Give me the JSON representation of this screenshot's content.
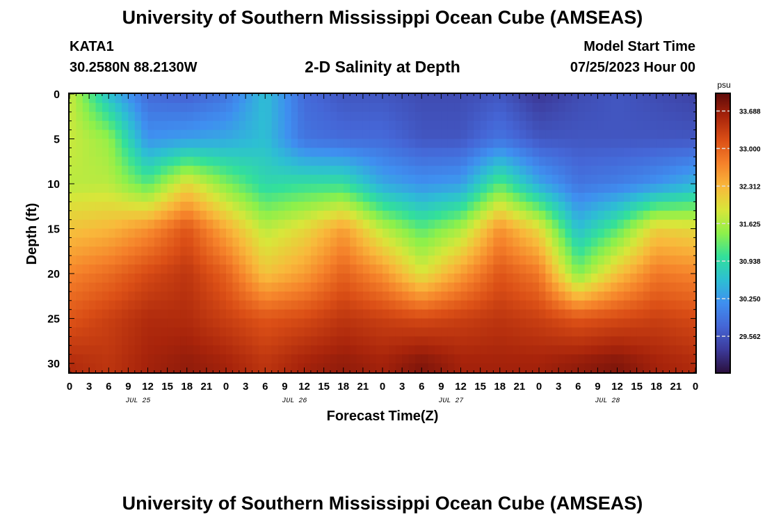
{
  "header": {
    "title": "University of Southern Mississippi Ocean Cube (AMSEAS)",
    "station_name": "KATA1",
    "station_coords": "30.2580N  88.2130W",
    "subtitle": "2-D Salinity at Depth",
    "model_start_label": "Model Start Time",
    "model_start_value": "07/25/2023 Hour 00"
  },
  "footer": {
    "title": "University of Southern Mississippi Ocean Cube (AMSEAS)"
  },
  "colors": {
    "background": "#ffffff",
    "axis": "#000000",
    "colormap": [
      "#2a0f3c",
      "#3c3a9a",
      "#4566d6",
      "#3f8ff0",
      "#2dbfd3",
      "#33e09a",
      "#8ef04a",
      "#d8e63a",
      "#f9b83b",
      "#f5812a",
      "#db4f16",
      "#a8240b",
      "#5e0a0a"
    ]
  },
  "chart_data": {
    "type": "heatmap",
    "title": "2-D Salinity at Depth",
    "xlabel": "Forecast Time(Z)",
    "ylabel": "Depth (ft)",
    "x_hours_range": [
      0,
      96
    ],
    "x_tick_labels": [
      "0",
      "3",
      "6",
      "9",
      "12",
      "15",
      "18",
      "21",
      "0",
      "3",
      "6",
      "9",
      "12",
      "15",
      "18",
      "21",
      "0",
      "3",
      "6",
      "9",
      "12",
      "15",
      "18",
      "21",
      "0",
      "3",
      "6",
      "9",
      "12",
      "15",
      "18",
      "21",
      "0"
    ],
    "date_labels": [
      {
        "hour": 10.5,
        "label": "JUL 25"
      },
      {
        "hour": 34.5,
        "label": "JUL 26"
      },
      {
        "hour": 58.5,
        "label": "JUL 27"
      },
      {
        "hour": 82.5,
        "label": "JUL 28"
      }
    ],
    "ylim": [
      0,
      31
    ],
    "y_ticks": [
      0,
      5,
      10,
      15,
      20,
      25,
      30
    ],
    "colorbar": {
      "unit": "psu",
      "min": 28.9,
      "max": 34.0,
      "tick_values": [
        33.688,
        33.0,
        32.312,
        31.625,
        30.938,
        30.25,
        29.562
      ],
      "tick_labels": [
        "33.688",
        "33.000",
        "32.312",
        "31.625",
        "30.938",
        "30.250",
        "29.562"
      ]
    },
    "value_description": "Approximate salinity field (psu) sampled from the figure: fresher water (~29.3-30.2 psu) near the surface, saltier water (~33.5-33.8 psu) near 30 ft; halocline oscillates with a ~24 h tidal period.",
    "depths_ft": [
      0,
      5,
      10,
      15,
      20,
      25,
      30
    ],
    "times_hr": [
      0,
      6,
      12,
      18,
      24,
      30,
      36,
      42,
      48,
      54,
      60,
      66,
      72,
      78,
      84,
      90,
      96
    ],
    "salinity_psu": [
      [
        31.8,
        30.6,
        29.8,
        29.7,
        29.9,
        30.6,
        29.8,
        29.6,
        29.6,
        29.5,
        29.5,
        29.6,
        29.3,
        29.5,
        29.6,
        29.5,
        29.4
      ],
      [
        31.8,
        31.5,
        30.2,
        30.3,
        30.4,
        30.6,
        29.9,
        29.8,
        29.8,
        29.6,
        29.6,
        29.9,
        29.6,
        29.6,
        29.6,
        29.6,
        29.6
      ],
      [
        31.7,
        31.7,
        31.2,
        32.0,
        31.4,
        30.9,
        31.0,
        31.0,
        30.4,
        30.2,
        30.3,
        31.2,
        30.4,
        29.9,
        30.0,
        30.2,
        30.5
      ],
      [
        32.2,
        32.3,
        32.6,
        33.1,
        32.4,
        31.7,
        32.0,
        32.5,
        31.7,
        31.2,
        31.6,
        32.6,
        32.0,
        30.6,
        31.2,
        32.1,
        32.0
      ],
      [
        32.7,
        32.9,
        33.2,
        33.4,
        33.0,
        32.2,
        32.5,
        33.0,
        32.6,
        31.9,
        32.5,
        33.1,
        32.8,
        31.4,
        32.2,
        32.8,
        32.7
      ],
      [
        33.1,
        33.3,
        33.5,
        33.5,
        33.3,
        33.1,
        33.2,
        33.4,
        33.3,
        33.2,
        33.3,
        33.4,
        33.3,
        33.1,
        33.2,
        33.3,
        33.2
      ],
      [
        33.5,
        33.4,
        33.6,
        33.7,
        33.6,
        33.4,
        33.6,
        33.7,
        33.6,
        33.8,
        33.6,
        33.6,
        33.6,
        33.7,
        33.8,
        33.6,
        33.5
      ]
    ]
  }
}
